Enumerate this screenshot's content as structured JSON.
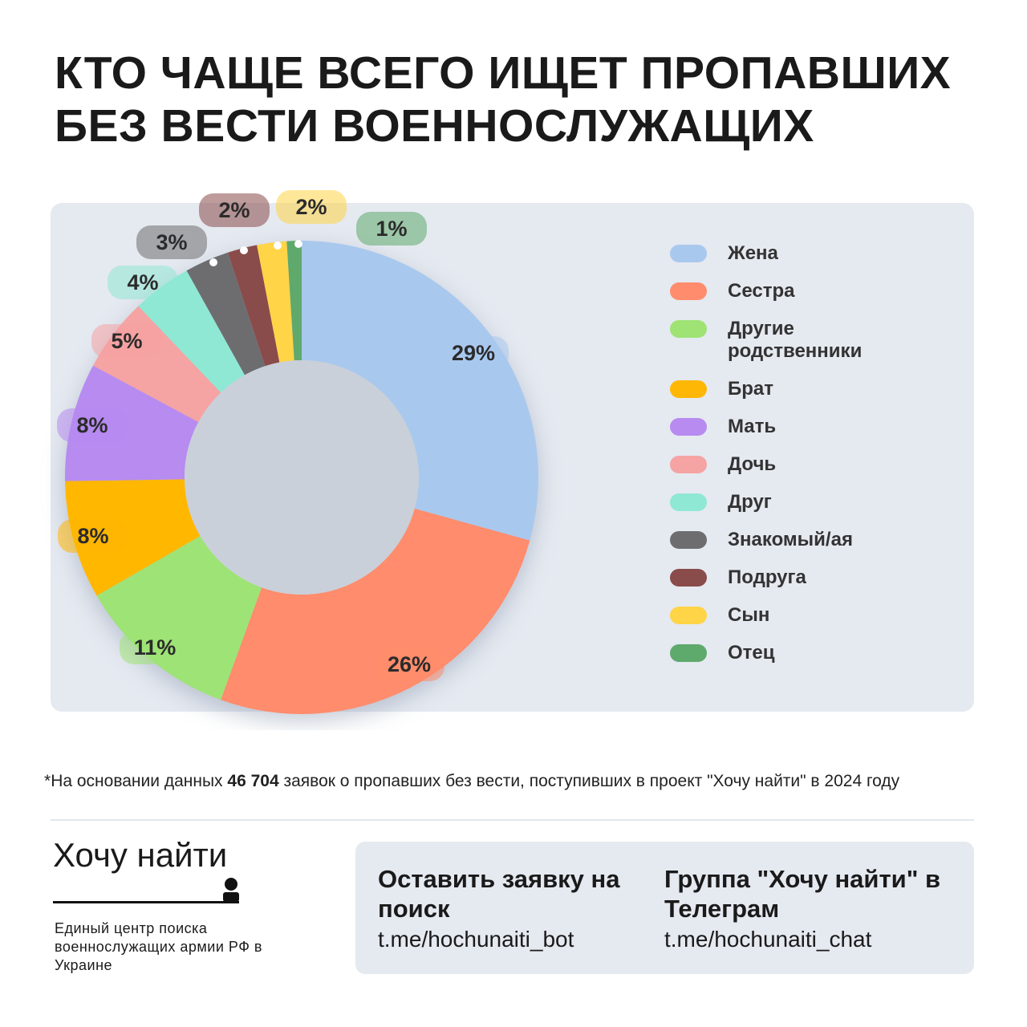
{
  "title": "КТО ЧАЩЕ ВСЕГО ИЩЕТ ПРОПАВШИХ БЕЗ ВЕСТИ ВОЕННОСЛУЖАЩИХ",
  "chart_data": {
    "type": "pie",
    "donut": true,
    "categories": [
      "Жена",
      "Сестра",
      "Другие родственники",
      "Брат",
      "Мать",
      "Дочь",
      "Друг",
      "Знакомый/ая",
      "Подруга",
      "Сын",
      "Отец"
    ],
    "values": [
      29,
      26,
      11,
      8,
      8,
      5,
      4,
      3,
      2,
      2,
      1
    ],
    "value_labels": [
      "29%",
      "26%",
      "11%",
      "8%",
      "8%",
      "5%",
      "4%",
      "3%",
      "2%",
      "2%",
      "1%"
    ],
    "colors": [
      "#a9c8ee",
      "#ff8c6c",
      "#9ee374",
      "#ffb705",
      "#b78bf0",
      "#f5a3a3",
      "#8fe8d3",
      "#6d6d70",
      "#8a4b4b",
      "#ffd447",
      "#5ea96c"
    ],
    "legend": "right"
  },
  "footnote": {
    "mark": "*",
    "before": "На основании данных",
    "bold": "46 704",
    "after": "заявок о пропавших без вести, поступивших в проект \"Хочу найти\" в 2024 году"
  },
  "footer": {
    "brand": "Хочу найти",
    "tagline": "Единый центр поиска военнослужащих армии РФ в Украине",
    "links": [
      {
        "title": "Оставить заявку на поиск",
        "url": "t.me/hochunaiti_bot"
      },
      {
        "title": "Группа \"Хочу найти\" в Телеграм",
        "url": "t.me/hochunaiti_chat"
      }
    ]
  }
}
